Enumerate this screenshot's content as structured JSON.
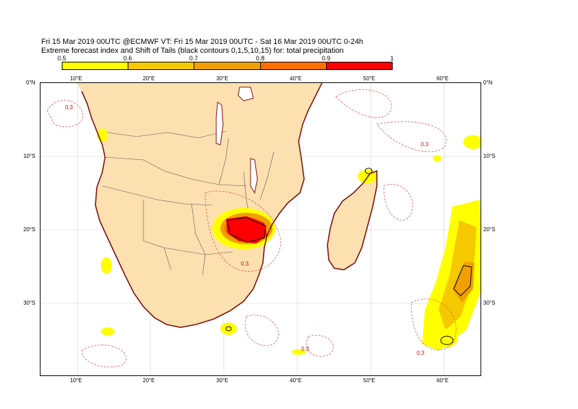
{
  "title": {
    "line1": "Fri 15 Mar 2019 00UTC @ECMWF VT: Fri 15 Mar 2019 00UTC - Sat 16 Mar 2019 00UTC  0-24h",
    "line2": "Extreme forecast index and Shift of Tails (black contours 0,1,5,10,15) for: total precipitation"
  },
  "colorbar": {
    "ticks": [
      "0.5",
      "0.6",
      "0.7",
      "0.8",
      "0.9",
      "1"
    ],
    "colors": [
      "#ffff00",
      "#f5c800",
      "#f0a000",
      "#ff7000",
      "#ff0000"
    ]
  },
  "map": {
    "land_color": "#fce0b0",
    "coast_color": "#7a1010",
    "contour_label_color": "#e00000",
    "lon_labels_top": [
      "10°E",
      "20°E",
      "30°E",
      "40°E",
      "50°E",
      "60°E"
    ],
    "lon_labels_bottom": [
      "10°E",
      "20°E",
      "30°E",
      "40°E",
      "50°E",
      "60°E"
    ],
    "lat_labels_left": [
      "0°N",
      "10°S",
      "20°S",
      "30°S"
    ],
    "lat_labels_right": [
      "0°N",
      "10°S",
      "20°S",
      "30°S"
    ],
    "contour_labels": [
      "0.3",
      "0.3",
      "0.3",
      "0.3",
      "0.3"
    ]
  }
}
